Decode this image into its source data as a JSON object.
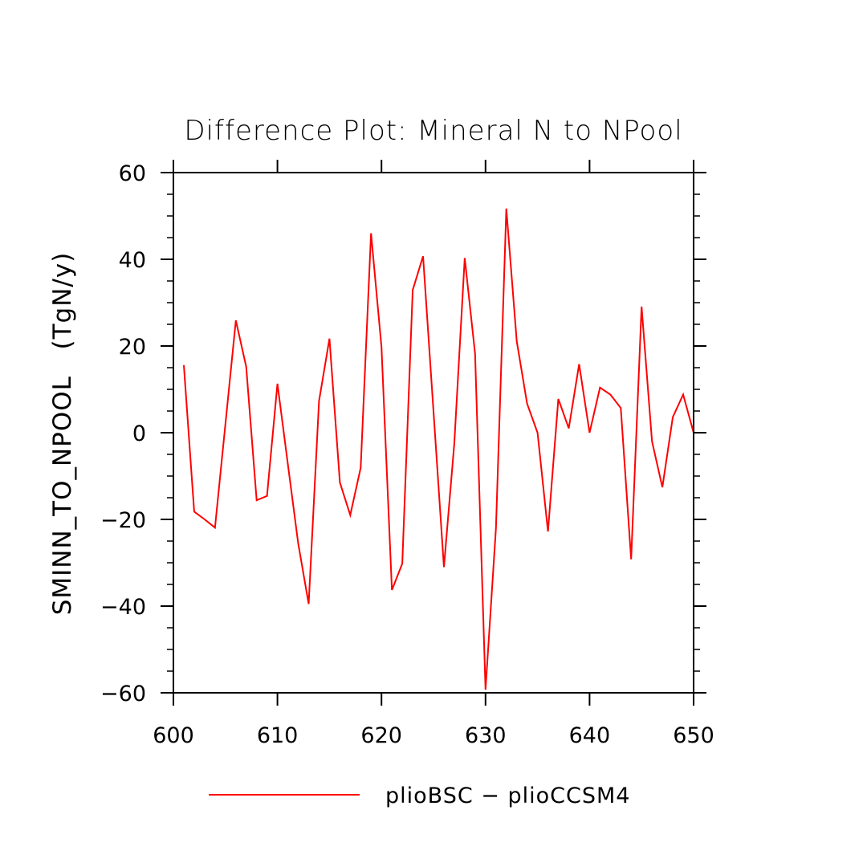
{
  "chart_data": {
    "type": "line",
    "title": "Difference Plot: Mineral N to NPool",
    "xlabel": "",
    "ylabel": "SMINN_TO_NPOOL   (TgN/y)",
    "xlim": [
      600,
      650
    ],
    "ylim": [
      -60,
      60
    ],
    "x_ticks": [
      600,
      610,
      620,
      630,
      640,
      650
    ],
    "x_tick_labels": [
      "600",
      "610",
      "620",
      "630",
      "640",
      "650"
    ],
    "y_ticks": [
      -60,
      -40,
      -20,
      0,
      20,
      40,
      60
    ],
    "y_tick_labels": [
      "−60",
      "−40",
      "−20",
      "0",
      "20",
      "40",
      "60"
    ],
    "grid": false,
    "legend_position": "bottom",
    "series": [
      {
        "name": "plioBSC − plioCCSM4",
        "color": "#ff0000",
        "x": [
          601,
          602,
          603,
          604,
          605,
          606,
          607,
          608,
          609,
          610,
          611,
          612,
          613,
          614,
          615,
          616,
          617,
          618,
          619,
          620,
          621,
          622,
          623,
          624,
          625,
          626,
          627,
          628,
          629,
          630,
          631,
          632,
          633,
          634,
          635,
          636,
          637,
          638,
          639,
          640,
          641,
          642,
          643,
          644,
          645,
          646,
          647,
          648,
          649,
          650
        ],
        "values": [
          15.6,
          -18.2,
          -20.0,
          -21.9,
          2.0,
          25.9,
          15.2,
          -15.6,
          -14.6,
          11.3,
          -7.3,
          -25.6,
          -39.5,
          7.3,
          21.7,
          -11.5,
          -19.0,
          -8.1,
          46.0,
          19.8,
          -36.3,
          -30.2,
          32.9,
          40.7,
          4.9,
          -31.0,
          -2.5,
          40.3,
          18.2,
          -59.3,
          -22.0,
          51.7,
          21.1,
          6.7,
          0.0,
          -22.8,
          7.8,
          1.0,
          15.8,
          0.0,
          10.4,
          8.8,
          5.7,
          -29.2,
          29.1,
          -2.0,
          -12.6,
          3.6,
          8.8,
          0.0
        ]
      }
    ]
  }
}
